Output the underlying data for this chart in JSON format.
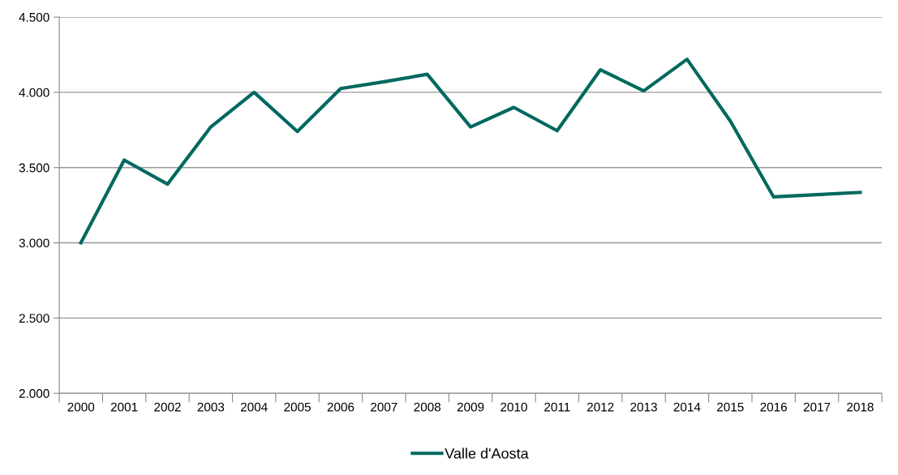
{
  "chart_data": {
    "type": "line",
    "categories": [
      "2000",
      "2001",
      "2002",
      "2003",
      "2004",
      "2005",
      "2006",
      "2007",
      "2008",
      "2009",
      "2010",
      "2011",
      "2012",
      "2013",
      "2014",
      "2015",
      "2016",
      "2017",
      "2018"
    ],
    "series": [
      {
        "name": "Valle d'Aosta",
        "color": "#00695f",
        "values": [
          3000,
          3550,
          3390,
          3770,
          4000,
          3740,
          4025,
          4070,
          4120,
          3770,
          3900,
          3745,
          4150,
          4010,
          4220,
          3810,
          3305,
          3320,
          3335
        ]
      }
    ],
    "ylim": [
      2000,
      4500
    ],
    "yticks": [
      {
        "value": 2000,
        "label": "2.000"
      },
      {
        "value": 2500,
        "label": "2.500"
      },
      {
        "value": 3000,
        "label": "3.000"
      },
      {
        "value": 3500,
        "label": "3.500"
      },
      {
        "value": 4000,
        "label": "4.000"
      },
      {
        "value": 4500,
        "label": "4.500"
      }
    ],
    "grid": "y",
    "legend": "bottom",
    "marker": "none",
    "line_style": "solid"
  }
}
